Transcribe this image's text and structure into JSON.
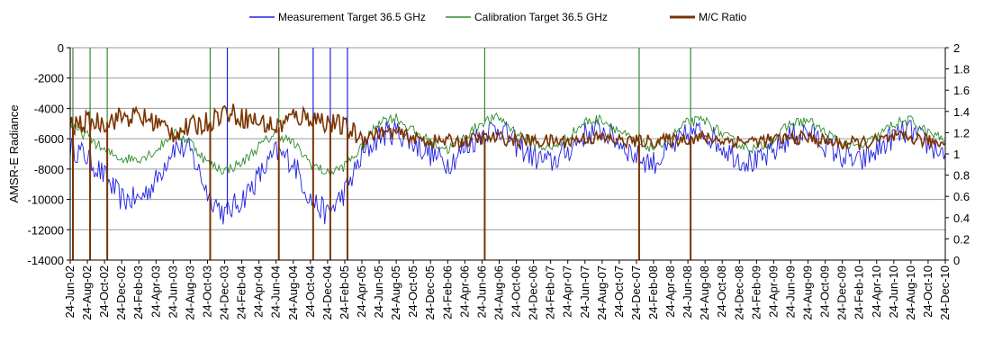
{
  "chart_data": {
    "type": "line",
    "title": "",
    "xlabel": "",
    "ylabel": "AMSR-E Radiance",
    "y2label": "",
    "ylim": [
      -14000,
      0
    ],
    "y2lim": [
      0,
      2
    ],
    "y_ticks": [
      "0",
      "-2000",
      "-4000",
      "-6000",
      "-8000",
      "-10000",
      "-12000",
      "-14000"
    ],
    "y2_ticks": [
      "2",
      "1.8",
      "1.6",
      "1.4",
      "1.2",
      "1",
      "0.8",
      "0.6",
      "0.4",
      "0.2",
      "0"
    ],
    "grid": true,
    "legend_position": "top",
    "x_tick_labels": [
      "24-Jun-02",
      "24-Aug-02",
      "24-Oct-02",
      "24-Dec-02",
      "24-Feb-03",
      "24-Apr-03",
      "24-Jun-03",
      "24-Aug-03",
      "24-Oct-03",
      "24-Dec-03",
      "24-Feb-04",
      "24-Apr-04",
      "24-Jun-04",
      "24-Aug-04",
      "24-Oct-04",
      "24-Dec-04",
      "24-Feb-05",
      "24-Apr-05",
      "24-Jun-05",
      "24-Aug-05",
      "24-Oct-05",
      "24-Dec-05",
      "24-Feb-06",
      "24-Apr-06",
      "24-Jun-06",
      "24-Aug-06",
      "24-Oct-06",
      "24-Dec-06",
      "24-Feb-07",
      "24-Apr-07",
      "24-Jun-07",
      "24-Aug-07",
      "24-Oct-07",
      "24-Dec-07",
      "24-Feb-08",
      "24-Apr-08",
      "24-Jun-08",
      "24-Aug-08",
      "24-Oct-08",
      "24-Dec-08",
      "24-Feb-09",
      "24-Apr-09",
      "24-Jun-09",
      "24-Aug-09",
      "24-Oct-09",
      "24-Dec-09",
      "24-Feb-10",
      "24-Apr-10",
      "24-Jun-10",
      "24-Aug-10",
      "24-Oct-10",
      "24-Dec-10"
    ],
    "series": [
      {
        "name": "Measurement Target 36.5 GHz",
        "axis": "left",
        "color": "#2020e0",
        "x": [
          "24-Jun-02",
          "24-Aug-02",
          "24-Oct-02",
          "24-Dec-02",
          "24-Feb-03",
          "24-Apr-03",
          "24-Jun-03",
          "24-Aug-03",
          "24-Oct-03",
          "24-Dec-03",
          "24-Feb-04",
          "24-Apr-04",
          "24-Jun-04",
          "24-Aug-04",
          "24-Oct-04",
          "24-Dec-04",
          "24-Feb-05",
          "24-Apr-05",
          "24-Jun-05",
          "24-Aug-05",
          "24-Oct-05",
          "24-Dec-05",
          "24-Feb-06",
          "24-Apr-06",
          "24-Jun-06",
          "24-Aug-06",
          "24-Oct-06",
          "24-Dec-06",
          "24-Feb-07",
          "24-Apr-07",
          "24-Jun-07",
          "24-Aug-07",
          "24-Oct-07",
          "24-Dec-07",
          "24-Feb-08",
          "24-Apr-08",
          "24-Jun-08",
          "24-Aug-08",
          "24-Oct-08",
          "24-Dec-08",
          "24-Feb-09",
          "24-Apr-09",
          "24-Jun-09",
          "24-Aug-09",
          "24-Oct-09",
          "24-Dec-09",
          "24-Feb-10",
          "24-Apr-10",
          "24-Jun-10",
          "24-Aug-10",
          "24-Oct-10",
          "24-Dec-10"
        ],
        "values": [
          -6500,
          -7200,
          -8500,
          -10000,
          -10000,
          -8800,
          -6500,
          -6800,
          -9500,
          -11000,
          -10000,
          -8500,
          -6900,
          -7500,
          -10000,
          -11000,
          -9500,
          -7200,
          -5800,
          -5500,
          -6300,
          -7000,
          -7600,
          -6700,
          -5600,
          -5200,
          -6400,
          -7200,
          -7600,
          -6800,
          -5700,
          -5400,
          -6200,
          -7200,
          -7600,
          -6700,
          -5700,
          -5500,
          -6500,
          -7300,
          -7600,
          -6900,
          -5800,
          -5500,
          -6400,
          -7200,
          -7600,
          -6800,
          -5800,
          -5500,
          -6400,
          -7000
        ]
      },
      {
        "name": "Calibration Target 36.5 GHz",
        "axis": "left",
        "color": "#2e8b2e",
        "x": [
          "24-Jun-02",
          "24-Aug-02",
          "24-Oct-02",
          "24-Dec-02",
          "24-Feb-03",
          "24-Apr-03",
          "24-Jun-03",
          "24-Aug-03",
          "24-Oct-03",
          "24-Dec-03",
          "24-Feb-04",
          "24-Apr-04",
          "24-Jun-04",
          "24-Aug-04",
          "24-Oct-04",
          "24-Dec-04",
          "24-Feb-05",
          "24-Apr-05",
          "24-Jun-05",
          "24-Aug-05",
          "24-Oct-05",
          "24-Dec-05",
          "24-Feb-06",
          "24-Apr-06",
          "24-Jun-06",
          "24-Aug-06",
          "24-Oct-06",
          "24-Dec-06",
          "24-Feb-07",
          "24-Apr-07",
          "24-Jun-07",
          "24-Aug-07",
          "24-Oct-07",
          "24-Dec-07",
          "24-Feb-08",
          "24-Apr-08",
          "24-Jun-08",
          "24-Aug-08",
          "24-Oct-08",
          "24-Dec-08",
          "24-Feb-09",
          "24-Apr-09",
          "24-Jun-09",
          "24-Aug-09",
          "24-Oct-09",
          "24-Dec-09",
          "24-Feb-10",
          "24-Apr-10",
          "24-Jun-10",
          "24-Aug-10",
          "24-Oct-10",
          "24-Dec-10"
        ],
        "values": [
          -5200,
          -5800,
          -6800,
          -7300,
          -7300,
          -6800,
          -5600,
          -6200,
          -7600,
          -8100,
          -7600,
          -6500,
          -5600,
          -6300,
          -7600,
          -8300,
          -7800,
          -6600,
          -4800,
          -4600,
          -5500,
          -6200,
          -6700,
          -5900,
          -4900,
          -4600,
          -5600,
          -6300,
          -6700,
          -5900,
          -4900,
          -4700,
          -5500,
          -6300,
          -6600,
          -5900,
          -4900,
          -4800,
          -5700,
          -6400,
          -6700,
          -6000,
          -5000,
          -4800,
          -5600,
          -6300,
          -6600,
          -5900,
          -5000,
          -4800,
          -5600,
          -6100
        ]
      },
      {
        "name": "M/C Ratio",
        "axis": "right",
        "color": "#7a3400",
        "x": [
          "24-Jun-02",
          "24-Aug-02",
          "24-Oct-02",
          "24-Dec-02",
          "24-Feb-03",
          "24-Apr-03",
          "24-Jun-03",
          "24-Aug-03",
          "24-Oct-03",
          "24-Dec-03",
          "24-Feb-04",
          "24-Apr-04",
          "24-Jun-04",
          "24-Aug-04",
          "24-Oct-04",
          "24-Dec-04",
          "24-Feb-05",
          "24-Apr-05",
          "24-Jun-05",
          "24-Aug-05",
          "24-Oct-05",
          "24-Dec-05",
          "24-Feb-06",
          "24-Apr-06",
          "24-Jun-06",
          "24-Aug-06",
          "24-Oct-06",
          "24-Dec-06",
          "24-Feb-07",
          "24-Apr-07",
          "24-Jun-07",
          "24-Aug-07",
          "24-Oct-07",
          "24-Dec-07",
          "24-Feb-08",
          "24-Apr-08",
          "24-Jun-08",
          "24-Aug-08",
          "24-Oct-08",
          "24-Dec-08",
          "24-Feb-09",
          "24-Apr-09",
          "24-Jun-09",
          "24-Aug-09",
          "24-Oct-09",
          "24-Dec-09",
          "24-Feb-10",
          "24-Apr-10",
          "24-Jun-10",
          "24-Aug-10",
          "24-Oct-10",
          "24-Dec-10"
        ],
        "values": [
          1.25,
          1.3,
          1.3,
          1.35,
          1.35,
          1.3,
          1.2,
          1.25,
          1.3,
          1.4,
          1.35,
          1.3,
          1.25,
          1.35,
          1.35,
          1.3,
          1.25,
          1.15,
          1.2,
          1.2,
          1.15,
          1.12,
          1.12,
          1.12,
          1.15,
          1.15,
          1.13,
          1.12,
          1.12,
          1.12,
          1.15,
          1.15,
          1.12,
          1.12,
          1.12,
          1.13,
          1.15,
          1.15,
          1.13,
          1.12,
          1.12,
          1.13,
          1.15,
          1.15,
          1.12,
          1.1,
          1.1,
          1.12,
          1.15,
          1.15,
          1.12,
          1.1
        ]
      }
    ],
    "spikes": {
      "calibration_up_to_0": [
        "24-Jun-02",
        "24-Aug-02",
        "24-Oct-02",
        "24-Oct-03",
        "24-Jun-04",
        "24-Jun-06",
        "24-Dec-07",
        "24-Jun-08"
      ],
      "measurement_up_to_0": [
        "24-Dec-03",
        "24-Oct-04",
        "24-Dec-04",
        "24-Feb-05"
      ],
      "ratio_down_to_0": [
        "24-Jun-02",
        "24-Aug-02",
        "24-Oct-02",
        "24-Oct-03",
        "24-Jun-04",
        "24-Oct-04",
        "24-Dec-04",
        "24-Feb-05",
        "24-Jun-06",
        "24-Dec-07",
        "24-Jun-08"
      ]
    }
  }
}
